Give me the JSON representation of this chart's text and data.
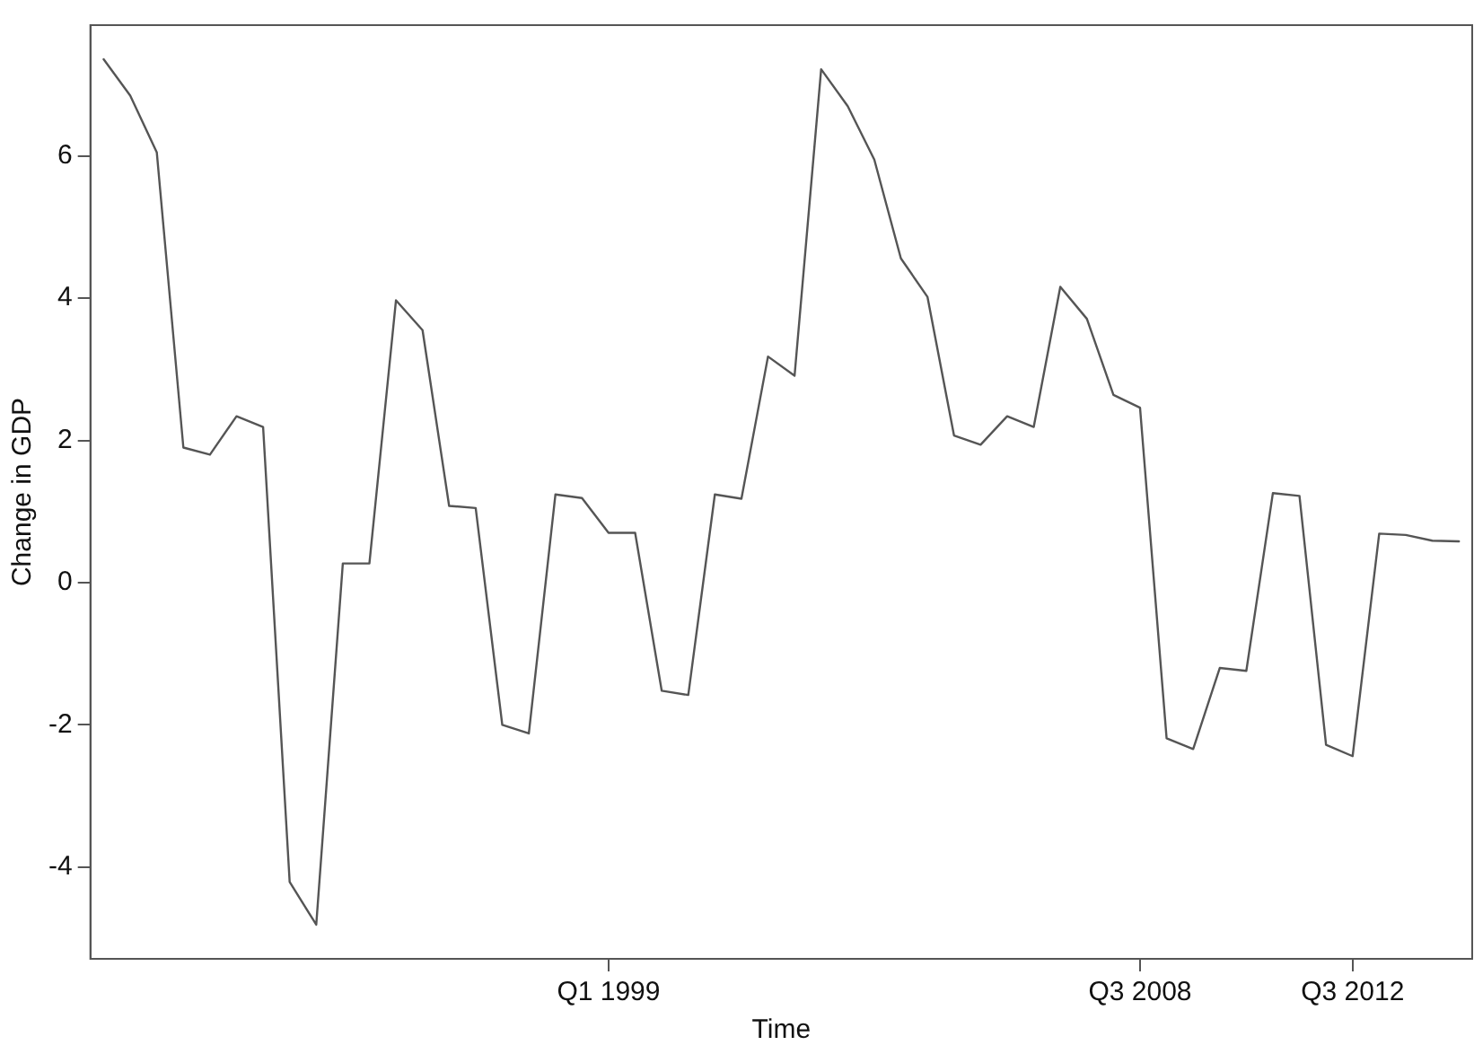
{
  "chart_data": {
    "type": "line",
    "xlabel": "Time",
    "ylabel": "Change in GDP",
    "categories": [
      null,
      null,
      null,
      null,
      null,
      null,
      null,
      null,
      null,
      null,
      null,
      null,
      null,
      null,
      null,
      null,
      null,
      null,
      null,
      "Q1 1999",
      null,
      null,
      null,
      null,
      null,
      null,
      null,
      null,
      null,
      null,
      null,
      null,
      null,
      null,
      null,
      null,
      null,
      null,
      null,
      "Q3 2008",
      null,
      null,
      null,
      null,
      null,
      null,
      null,
      "Q3 2012",
      null,
      null,
      null,
      null
    ],
    "series": [
      {
        "color": "#555555",
        "values": [
          7.36,
          6.85,
          6.05,
          1.9,
          1.8,
          2.34,
          2.19,
          -4.21,
          -4.81,
          0.27,
          0.27,
          3.97,
          3.55,
          1.08,
          1.05,
          -2.0,
          -2.12,
          1.24,
          1.19,
          0.7,
          0.7,
          -1.52,
          -1.58,
          1.24,
          1.18,
          3.18,
          2.91,
          7.22,
          6.7,
          5.95,
          4.56,
          4.02,
          2.07,
          1.94,
          2.34,
          2.19,
          4.16,
          3.71,
          2.64,
          2.46,
          -2.19,
          -2.34,
          -1.2,
          -1.24,
          1.26,
          1.22,
          -2.28,
          -2.44,
          0.69,
          0.67,
          0.59,
          0.58
        ]
      }
    ],
    "ylim": [
      -5.29,
      7.84
    ],
    "yticks": [
      -4,
      -2,
      0,
      2,
      4,
      6
    ],
    "grid": false,
    "legend": false,
    "marker": "none",
    "line_style": "solid"
  }
}
